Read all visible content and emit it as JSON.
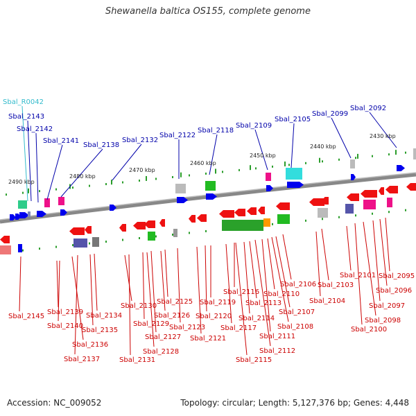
{
  "title": "Shewanella baltica OS155, complete genome",
  "footer": {
    "accession": "Accession: NC_009052",
    "summary": "Topology: circular; Length: 5,127,376 bp; Genes: 4,448"
  },
  "colors": {
    "forward_label": "#0000aa",
    "reverse_label": "#cc0000",
    "rna_label": "#33bbcc",
    "backbone": "#888888"
  },
  "scale_labels": [
    {
      "text": "2490 kbp"
    },
    {
      "text": "2480 kbp"
    },
    {
      "text": "2470 kbp"
    },
    {
      "text": "2460 kbp"
    },
    {
      "text": "2450 kbp"
    },
    {
      "text": "2440 kbp"
    },
    {
      "text": "2430 kbp"
    }
  ],
  "top_labels": [
    {
      "text": "Sbal_R0042",
      "kind": "rna"
    },
    {
      "text": "Sbal_2143"
    },
    {
      "text": "Sbal_2142"
    },
    {
      "text": "Sbal_2141"
    },
    {
      "text": "Sbal_2138"
    },
    {
      "text": "Sbal_2132"
    },
    {
      "text": "Sbal_2122"
    },
    {
      "text": "Sbal_2118"
    },
    {
      "text": "Sbal_2109"
    },
    {
      "text": "Sbal_2105"
    },
    {
      "text": "Sbal_2099"
    },
    {
      "text": "Sbal_2092"
    }
  ],
  "bottom_labels": [
    {
      "text": "Sbal_2145"
    },
    {
      "text": "Sbal_2139"
    },
    {
      "text": "Sbal_2140"
    },
    {
      "text": "Sbal_2136"
    },
    {
      "text": "Sbal_2137"
    },
    {
      "text": "Sbal_2134"
    },
    {
      "text": "Sbal_2135"
    },
    {
      "text": "Sbal_2130"
    },
    {
      "text": "Sbal_2131"
    },
    {
      "text": "Sbal_2129"
    },
    {
      "text": "Sbal_2128"
    },
    {
      "text": "Sbal_2127"
    },
    {
      "text": "Sbal_2126"
    },
    {
      "text": "Sbal_2125"
    },
    {
      "text": "Sbal_2123"
    },
    {
      "text": "Sbal_2121"
    },
    {
      "text": "Sbal_2120"
    },
    {
      "text": "Sbal_2119"
    },
    {
      "text": "Sbal_2117"
    },
    {
      "text": "Sbal_2116"
    },
    {
      "text": "Sbal_2115"
    },
    {
      "text": "Sbal_2114"
    },
    {
      "text": "Sbal_2113"
    },
    {
      "text": "Sbal_2112"
    },
    {
      "text": "Sbal_2111"
    },
    {
      "text": "Sbal_2110"
    },
    {
      "text": "Sbal_2108"
    },
    {
      "text": "Sbal_2107"
    },
    {
      "text": "Sbal_2106"
    },
    {
      "text": "Sbal_2104"
    },
    {
      "text": "Sbal_2103"
    },
    {
      "text": "Sbal_2101"
    },
    {
      "text": "Sbal_2100"
    },
    {
      "text": "Sbal_2098"
    },
    {
      "text": "Sbal_2097"
    },
    {
      "text": "Sbal_2096"
    },
    {
      "text": "Sbal_2095"
    }
  ]
}
